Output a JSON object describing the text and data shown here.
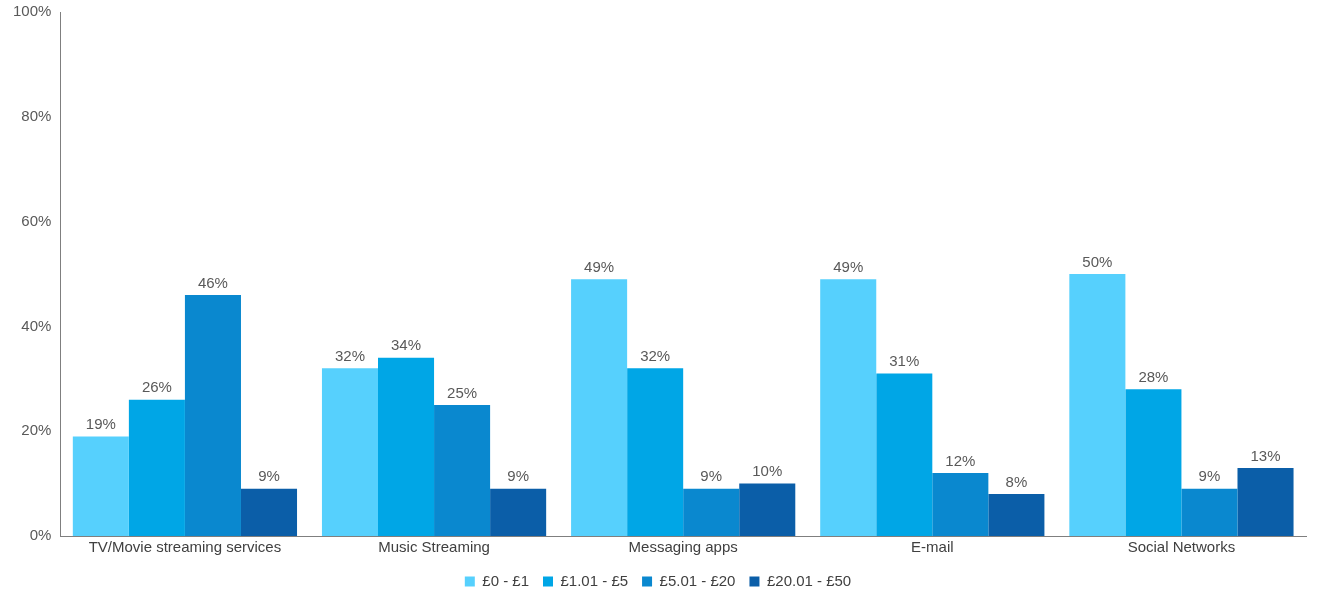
{
  "chart_data": {
    "type": "bar",
    "categories": [
      "TV/Movie streaming services",
      "Music Streaming",
      "Messaging apps",
      "E-mail",
      "Social Networks"
    ],
    "series": [
      {
        "name": "£0 - £1",
        "color": "#56d0fd",
        "values": [
          19,
          32,
          49,
          49,
          50
        ],
        "value_labels": [
          "19%",
          "32%",
          "49%",
          "49%",
          "50%"
        ]
      },
      {
        "name": "£1.01 - £5",
        "color": "#00a6e6",
        "values": [
          26,
          34,
          32,
          31,
          28
        ],
        "value_labels": [
          "26%",
          "34%",
          "32%",
          "31%",
          "28%"
        ]
      },
      {
        "name": "£5.01 - £20",
        "color": "#0a88cf",
        "values": [
          46,
          25,
          9,
          12,
          9
        ],
        "value_labels": [
          "46%",
          "25%",
          "9%",
          "12%",
          "9%"
        ]
      },
      {
        "name": "£20.01 - £50",
        "color": "#0b5ea8",
        "values": [
          9,
          9,
          10,
          8,
          13
        ],
        "value_labels": [
          "9%",
          "9%",
          "10%",
          "8%",
          "13%"
        ]
      }
    ],
    "ylim": [
      0,
      100
    ],
    "yticks": [
      {
        "value": 0,
        "label": "0%"
      },
      {
        "value": 20,
        "label": "20%"
      },
      {
        "value": 40,
        "label": "40%"
      },
      {
        "value": 60,
        "label": "60%"
      },
      {
        "value": 80,
        "label": "80%"
      },
      {
        "value": 100,
        "label": "100%"
      }
    ],
    "grid": false,
    "legend": "bottom"
  }
}
